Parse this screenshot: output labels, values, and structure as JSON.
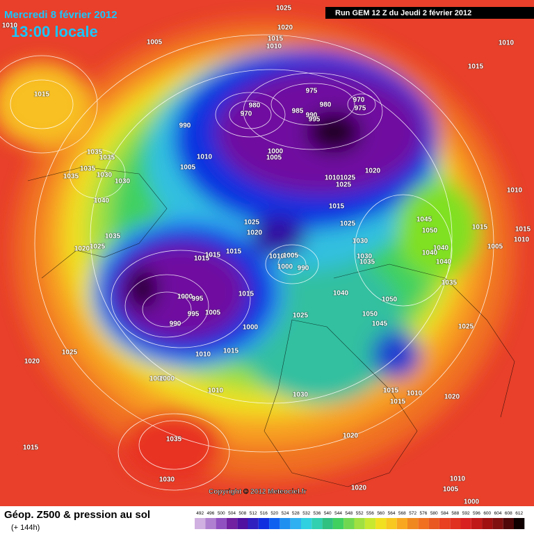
{
  "header": {
    "date": "Mercredi 8 février 2012",
    "time": "13:00 locale",
    "run": "Run GEM 12 Z du Jeudi 2 février 2012"
  },
  "copyright": "Copyright © 2012 Meteociel.fr",
  "footer": {
    "title": "Géop. Z500 & pression au sol",
    "subtitle": "(+ 144h)"
  },
  "legend": {
    "levels": [
      492,
      496,
      500,
      504,
      508,
      512,
      516,
      520,
      524,
      528,
      532,
      536,
      540,
      544,
      548,
      552,
      556,
      560,
      564,
      568,
      572,
      576,
      580,
      584,
      588,
      592,
      596,
      600,
      604,
      608,
      612
    ]
  },
  "pressure_labels": [
    1025,
    1020,
    1015,
    1010,
    1005,
    1010,
    1010,
    1015,
    1015,
    975,
    980,
    970,
    975,
    980,
    970,
    985,
    990,
    995,
    990,
    1000,
    1005,
    1010,
    1005,
    1035,
    1035,
    1035,
    1035,
    1030,
    1030,
    1040,
    1020,
    1010,
    1025,
    1025,
    1015,
    1025,
    1025,
    1020,
    1030,
    1045,
    1050,
    1015,
    1010,
    1015,
    1010,
    1005,
    1040,
    1040,
    1040,
    1035,
    1030,
    1035,
    1035,
    1020,
    1025,
    1015,
    1015,
    1015,
    1010,
    1005,
    1000,
    990,
    1015,
    1040,
    1050,
    1050,
    1045,
    1025,
    1000,
    995,
    1005,
    990,
    995,
    1000,
    1025,
    1015,
    1010,
    1025,
    1020,
    1005,
    1000,
    1010,
    1030,
    1015,
    1015,
    1010,
    1020,
    1020,
    1035,
    1015,
    1030,
    1020,
    1010,
    1005,
    1000
  ]
}
